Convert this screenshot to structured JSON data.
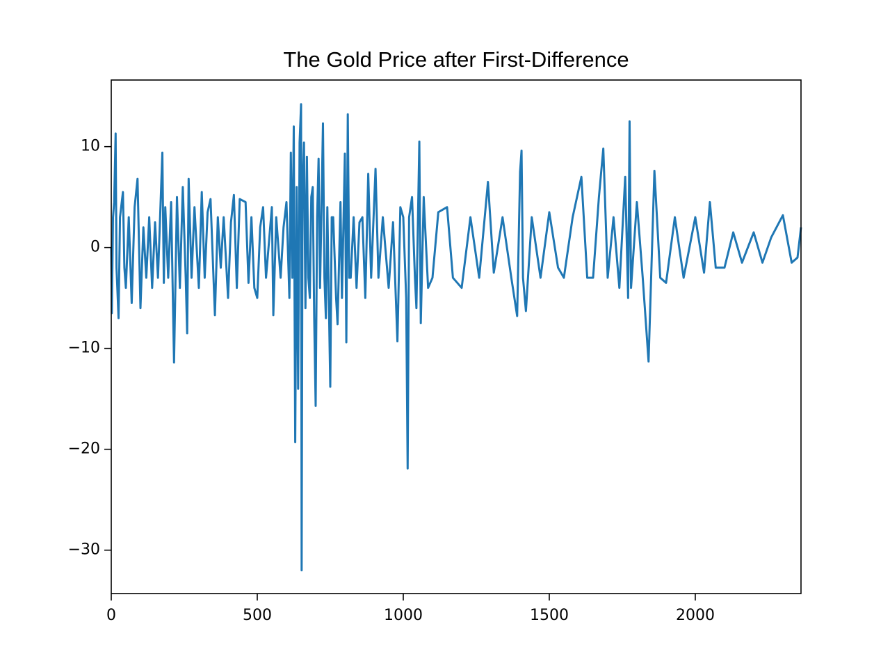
{
  "chart_data": {
    "type": "line",
    "title": "The Gold Price after First-Difference",
    "x": [
      0,
      2,
      6,
      10,
      15,
      18,
      25,
      30,
      40,
      45,
      50,
      60,
      70,
      80,
      90,
      100,
      110,
      120,
      130,
      140,
      150,
      160,
      175,
      180,
      185,
      195,
      205,
      215,
      225,
      235,
      245,
      255,
      260,
      265,
      275,
      285,
      300,
      310,
      320,
      330,
      340,
      355,
      365,
      375,
      385,
      400,
      410,
      420,
      430,
      440,
      460,
      470,
      480,
      490,
      500,
      510,
      520,
      530,
      550,
      555,
      565,
      580,
      590,
      600,
      610,
      615,
      620,
      625,
      630,
      635,
      640,
      645,
      650,
      652,
      655,
      660,
      665,
      670,
      675,
      680,
      685,
      690,
      695,
      700,
      705,
      710,
      715,
      720,
      725,
      730,
      735,
      740,
      750,
      755,
      760,
      770,
      775,
      785,
      790,
      800,
      805,
      810,
      815,
      820,
      830,
      840,
      850,
      860,
      870,
      880,
      890,
      905,
      915,
      930,
      950,
      965,
      980,
      990,
      1000,
      1010,
      1015,
      1020,
      1030,
      1040,
      1045,
      1055,
      1060,
      1070,
      1085,
      1100,
      1120,
      1150,
      1170,
      1200,
      1230,
      1260,
      1290,
      1310,
      1340,
      1370,
      1390,
      1400,
      1405,
      1410,
      1420,
      1440,
      1470,
      1500,
      1530,
      1550,
      1580,
      1610,
      1630,
      1650,
      1670,
      1685,
      1700,
      1720,
      1740,
      1760,
      1770,
      1775,
      1780,
      1800,
      1820,
      1840,
      1860,
      1880,
      1900,
      1930,
      1960,
      2000,
      2030,
      2050,
      2070,
      2100,
      2130,
      2160,
      2200,
      2230,
      2260,
      2300,
      2330,
      2350,
      2362
    ],
    "series": [
      {
        "color": "#1f77b4",
        "values": [
          0,
          -6.5,
          3,
          4.5,
          11.3,
          -2,
          -7,
          3,
          5.5,
          -2,
          -4,
          3,
          -5.5,
          4,
          6.8,
          -6,
          2,
          -3,
          3,
          -4,
          2.5,
          -3,
          9.4,
          -3.5,
          4,
          -3,
          4.5,
          -11.4,
          5,
          -4,
          6,
          -3,
          -8.5,
          6.8,
          -3,
          4,
          -4,
          5.5,
          -3,
          3.5,
          4.8,
          -6.7,
          3,
          -2,
          3,
          -5,
          2.5,
          5.2,
          -4,
          4.8,
          4.5,
          -3.5,
          3,
          -4,
          -5,
          2,
          4,
          -3,
          4,
          -6.7,
          3,
          -3,
          2,
          4.5,
          -5,
          9.4,
          -3,
          12,
          -19.3,
          6,
          -14,
          10.4,
          14.2,
          -32,
          6,
          10.4,
          -6,
          9,
          -3,
          -5,
          5,
          6,
          -7,
          -15.7,
          3,
          8.8,
          -4,
          4,
          12.3,
          -3,
          -7,
          4,
          -13.8,
          3,
          3,
          -5,
          -7.6,
          4.5,
          -5,
          9.3,
          -9.4,
          13.2,
          -3,
          -3,
          3,
          -4,
          2.5,
          3,
          -5,
          7.3,
          -3,
          7.8,
          -3,
          3,
          -4,
          2.5,
          -9.3,
          4,
          3,
          -5,
          -21.9,
          3,
          5,
          -3,
          -6,
          10.5,
          -7.5,
          5,
          -4,
          -3,
          3.5,
          4,
          -3,
          -4,
          3,
          -3,
          6.5,
          -2.5,
          3,
          -3,
          -6.8,
          7.5,
          9.6,
          -3,
          -6.3,
          3,
          -3,
          3.5,
          -2,
          -3,
          3,
          7,
          -3,
          -3,
          5,
          9.8,
          -3,
          3,
          -4,
          7,
          -5,
          12.5,
          -4,
          4.5,
          -3,
          -11.3,
          7.6,
          -3,
          -3.5,
          3,
          -3,
          3,
          -2.5,
          4.5,
          -2,
          -2,
          1.5,
          -1.5,
          1.5,
          -1.5,
          1,
          3.2,
          -1.5,
          -1,
          2
        ]
      }
    ],
    "xlim": [
      0,
      2362
    ],
    "xticks": [
      0,
      500,
      1000,
      1500,
      2000
    ],
    "ylim": [
      -34.3,
      16.6
    ],
    "yticks": [
      {
        "value": -30,
        "label": "−30"
      },
      {
        "value": -20,
        "label": "−20"
      },
      {
        "value": -10,
        "label": "−10"
      },
      0,
      10
    ],
    "grid": false
  }
}
